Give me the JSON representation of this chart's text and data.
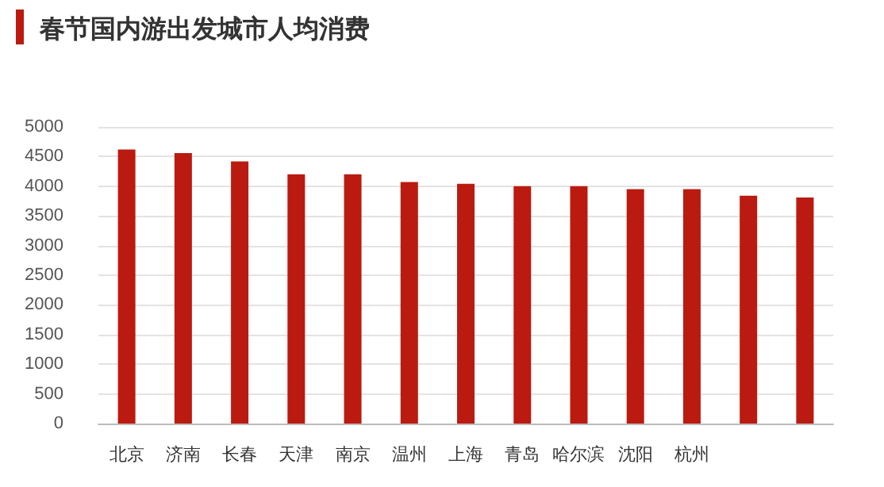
{
  "chart_data": {
    "type": "bar",
    "title": "春节国内游出发城市人均消费",
    "categories": [
      "北京",
      "济南",
      "长春",
      "天津",
      "南京",
      "温州",
      "上海",
      "青岛",
      "哈尔滨",
      "沈阳",
      "杭州",
      null,
      null
    ],
    "values": [
      4620,
      4560,
      4420,
      4200,
      4200,
      4070,
      4040,
      4000,
      4000,
      3950,
      3950,
      3840,
      3810
    ],
    "color": "#bb1a10",
    "ylim": [
      0,
      5000
    ],
    "yticks": [
      0,
      500,
      1000,
      1500,
      2000,
      2500,
      3000,
      3500,
      4000,
      4500,
      5000
    ],
    "grid": "y"
  }
}
